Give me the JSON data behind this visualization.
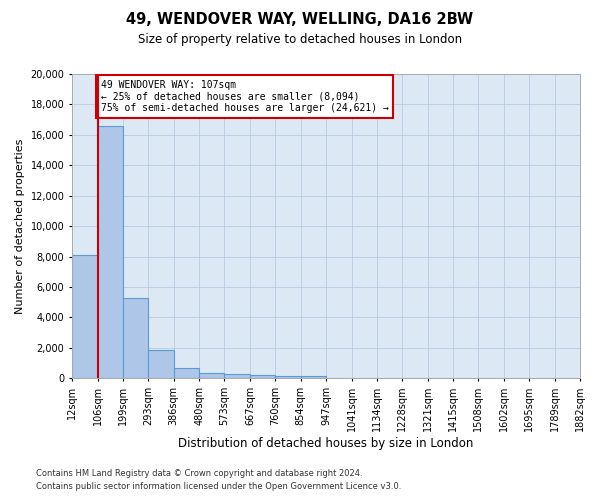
{
  "title": "49, WENDOVER WAY, WELLING, DA16 2BW",
  "subtitle": "Size of property relative to detached houses in London",
  "xlabel": "Distribution of detached houses by size in London",
  "ylabel": "Number of detached properties",
  "annotation_title": "49 WENDOVER WAY: 107sqm",
  "annotation_line1": "← 25% of detached houses are smaller (8,094)",
  "annotation_line2": "75% of semi-detached houses are larger (24,621) →",
  "property_size_sqm": 107,
  "bar_left_edges": [
    12,
    106,
    199,
    293,
    386,
    480,
    573,
    667,
    760,
    854,
    947,
    1041,
    1134,
    1228,
    1321,
    1415,
    1508,
    1602,
    1695,
    1789
  ],
  "bar_widths": [
    94,
    93,
    94,
    93,
    94,
    93,
    94,
    93,
    94,
    93,
    94,
    93,
    94,
    93,
    94,
    93,
    94,
    93,
    94,
    93
  ],
  "bar_heights": [
    8094,
    16600,
    5300,
    1850,
    700,
    350,
    280,
    220,
    180,
    130,
    0,
    0,
    0,
    0,
    0,
    0,
    0,
    0,
    0,
    0
  ],
  "tick_labels": [
    "12sqm",
    "106sqm",
    "199sqm",
    "293sqm",
    "386sqm",
    "480sqm",
    "573sqm",
    "667sqm",
    "760sqm",
    "854sqm",
    "947sqm",
    "1041sqm",
    "1134sqm",
    "1228sqm",
    "1321sqm",
    "1415sqm",
    "1508sqm",
    "1602sqm",
    "1695sqm",
    "1789sqm",
    "1882sqm"
  ],
  "bar_color": "#aec6e8",
  "bar_edge_color": "#5b9bd5",
  "marker_color": "#cc0000",
  "annotation_box_edge": "#cc0000",
  "background_color": "#ffffff",
  "axes_bg_color": "#dce9f5",
  "grid_color": "#b0c4de",
  "ylim": [
    0,
    20000
  ],
  "yticks": [
    0,
    2000,
    4000,
    6000,
    8000,
    10000,
    12000,
    14000,
    16000,
    18000,
    20000
  ],
  "footer_line1": "Contains HM Land Registry data © Crown copyright and database right 2024.",
  "footer_line2": "Contains public sector information licensed under the Open Government Licence v3.0."
}
